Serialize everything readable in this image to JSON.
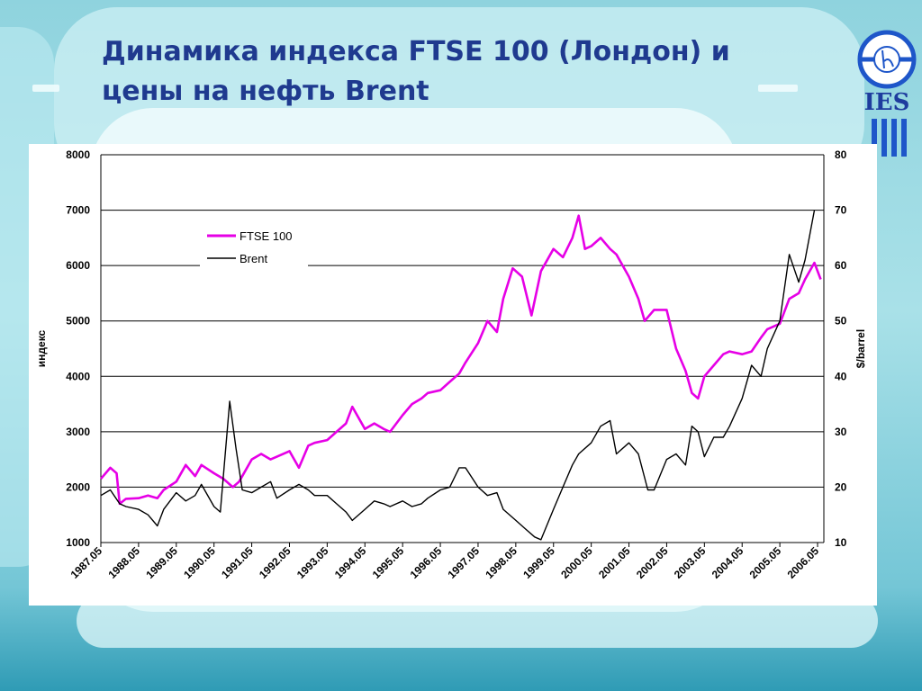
{
  "slide": {
    "title_line1": "Динамика индекса FTSE 100 (Лондон) и",
    "title_line2": "цены на нефть Brent",
    "logo_text": "IES"
  },
  "colors": {
    "ftse": "#e600e6",
    "brent": "#000000",
    "title": "#1f3a8f",
    "logo": "#1e56c9"
  },
  "chart_data": {
    "type": "line",
    "title": "",
    "ylabel_left": "индекс",
    "ylabel_right": "$/barrel",
    "ylim_left": [
      1000,
      8000
    ],
    "ylim_right": [
      10,
      80
    ],
    "yticks_left": [
      "1000",
      "2000",
      "3000",
      "4000",
      "5000",
      "6000",
      "7000",
      "8000"
    ],
    "yticks_right": [
      "10",
      "20",
      "30",
      "40",
      "50",
      "60",
      "70",
      "80"
    ],
    "xticks": [
      "1987.05",
      "1988.05",
      "1989.05",
      "1990.05",
      "1991.05",
      "1992.05",
      "1993.05",
      "1994.05",
      "1995.05",
      "1996.05",
      "1997.05",
      "1998.05",
      "1999.05",
      "2000.05",
      "2001.05",
      "2002.05",
      "2003.05",
      "2004.05",
      "2005.05",
      "2006.05"
    ],
    "grid": true,
    "legend_position": "top-left",
    "series": [
      {
        "name": "FTSE 100",
        "axis": "left",
        "points": [
          [
            "1987.05",
            2150
          ],
          [
            "1987.08",
            2350
          ],
          [
            "1987.10",
            2250
          ],
          [
            "1987.11",
            1700
          ],
          [
            "1988.01",
            1790
          ],
          [
            "1988.05",
            1800
          ],
          [
            "1988.08",
            1850
          ],
          [
            "1988.11",
            1800
          ],
          [
            "1989.01",
            1950
          ],
          [
            "1989.05",
            2100
          ],
          [
            "1989.08",
            2400
          ],
          [
            "1989.11",
            2200
          ],
          [
            "1990.01",
            2400
          ],
          [
            "1990.05",
            2250
          ],
          [
            "1990.08",
            2150
          ],
          [
            "1990.11",
            2000
          ],
          [
            "1991.01",
            2100
          ],
          [
            "1991.05",
            2500
          ],
          [
            "1991.08",
            2600
          ],
          [
            "1991.11",
            2500
          ],
          [
            "1992.01",
            2550
          ],
          [
            "1992.05",
            2650
          ],
          [
            "1992.08",
            2350
          ],
          [
            "1992.11",
            2750
          ],
          [
            "1993.01",
            2800
          ],
          [
            "1993.05",
            2850
          ],
          [
            "1993.08",
            3000
          ],
          [
            "1993.11",
            3150
          ],
          [
            "1994.01",
            3450
          ],
          [
            "1994.05",
            3050
          ],
          [
            "1994.08",
            3150
          ],
          [
            "1994.11",
            3050
          ],
          [
            "1995.01",
            3000
          ],
          [
            "1995.05",
            3300
          ],
          [
            "1995.08",
            3500
          ],
          [
            "1995.11",
            3600
          ],
          [
            "1996.01",
            3700
          ],
          [
            "1996.05",
            3750
          ],
          [
            "1996.08",
            3900
          ],
          [
            "1996.11",
            4050
          ],
          [
            "1997.01",
            4250
          ],
          [
            "1997.05",
            4600
          ],
          [
            "1997.08",
            5000
          ],
          [
            "1997.11",
            4800
          ],
          [
            "1998.01",
            5400
          ],
          [
            "1998.04",
            5950
          ],
          [
            "1998.07",
            5800
          ],
          [
            "1998.10",
            5100
          ],
          [
            "1999.01",
            5900
          ],
          [
            "1999.05",
            6300
          ],
          [
            "1999.08",
            6150
          ],
          [
            "1999.11",
            6500
          ],
          [
            "2000.01",
            6900
          ],
          [
            "2000.03",
            6300
          ],
          [
            "2000.05",
            6350
          ],
          [
            "2000.08",
            6500
          ],
          [
            "2000.11",
            6300
          ],
          [
            "2001.01",
            6200
          ],
          [
            "2001.05",
            5800
          ],
          [
            "2001.08",
            5400
          ],
          [
            "2001.10",
            5000
          ],
          [
            "2002.01",
            5200
          ],
          [
            "2002.05",
            5200
          ],
          [
            "2002.08",
            4500
          ],
          [
            "2002.11",
            4100
          ],
          [
            "2003.01",
            3700
          ],
          [
            "2003.03",
            3600
          ],
          [
            "2003.05",
            4000
          ],
          [
            "2003.08",
            4200
          ],
          [
            "2003.11",
            4400
          ],
          [
            "2004.01",
            4450
          ],
          [
            "2004.05",
            4400
          ],
          [
            "2004.08",
            4450
          ],
          [
            "2004.11",
            4700
          ],
          [
            "2005.01",
            4850
          ],
          [
            "2005.05",
            4950
          ],
          [
            "2005.08",
            5400
          ],
          [
            "2005.11",
            5500
          ],
          [
            "2006.01",
            5750
          ],
          [
            "2006.04",
            6050
          ],
          [
            "2006.06",
            5750
          ]
        ]
      },
      {
        "name": "Brent",
        "axis": "right",
        "points": [
          [
            "1987.05",
            18.5
          ],
          [
            "1987.08",
            19.5
          ],
          [
            "1987.11",
            17
          ],
          [
            "1988.01",
            16.5
          ],
          [
            "1988.05",
            16
          ],
          [
            "1988.08",
            15
          ],
          [
            "1988.11",
            13
          ],
          [
            "1989.01",
            16
          ],
          [
            "1989.05",
            19
          ],
          [
            "1989.08",
            17.5
          ],
          [
            "1989.11",
            18.5
          ],
          [
            "1990.01",
            20.5
          ],
          [
            "1990.05",
            16.5
          ],
          [
            "1990.07",
            15.5
          ],
          [
            "1990.10",
            35.5
          ],
          [
            "1990.12",
            27
          ],
          [
            "1991.02",
            19.5
          ],
          [
            "1991.05",
            19
          ],
          [
            "1991.08",
            20
          ],
          [
            "1991.11",
            21
          ],
          [
            "1992.01",
            18
          ],
          [
            "1992.05",
            19.5
          ],
          [
            "1992.08",
            20.5
          ],
          [
            "1992.11",
            19.5
          ],
          [
            "1993.01",
            18.5
          ],
          [
            "1993.05",
            18.5
          ],
          [
            "1993.08",
            17
          ],
          [
            "1993.11",
            15.5
          ],
          [
            "1994.01",
            14
          ],
          [
            "1994.05",
            16
          ],
          [
            "1994.08",
            17.5
          ],
          [
            "1994.11",
            17
          ],
          [
            "1995.01",
            16.5
          ],
          [
            "1995.05",
            17.5
          ],
          [
            "1995.08",
            16.5
          ],
          [
            "1995.11",
            17
          ],
          [
            "1996.01",
            18
          ],
          [
            "1996.05",
            19.5
          ],
          [
            "1996.08",
            20
          ],
          [
            "1996.11",
            23.5
          ],
          [
            "1997.01",
            23.5
          ],
          [
            "1997.05",
            20
          ],
          [
            "1997.08",
            18.5
          ],
          [
            "1997.11",
            19
          ],
          [
            "1998.01",
            16
          ],
          [
            "1998.05",
            14
          ],
          [
            "1998.08",
            12.5
          ],
          [
            "1998.11",
            11
          ],
          [
            "1999.01",
            10.5
          ],
          [
            "1999.05",
            16
          ],
          [
            "1999.08",
            20
          ],
          [
            "1999.11",
            24
          ],
          [
            "2000.01",
            26
          ],
          [
            "2000.05",
            28
          ],
          [
            "2000.08",
            31
          ],
          [
            "2000.11",
            32
          ],
          [
            "2001.01",
            26
          ],
          [
            "2001.05",
            28
          ],
          [
            "2001.08",
            26
          ],
          [
            "2001.11",
            19.5
          ],
          [
            "2002.01",
            19.5
          ],
          [
            "2002.05",
            25
          ],
          [
            "2002.08",
            26
          ],
          [
            "2002.11",
            24
          ],
          [
            "2003.01",
            31
          ],
          [
            "2003.03",
            30
          ],
          [
            "2003.05",
            25.5
          ],
          [
            "2003.08",
            29
          ],
          [
            "2003.11",
            29
          ],
          [
            "2004.01",
            31
          ],
          [
            "2004.05",
            36
          ],
          [
            "2004.08",
            42
          ],
          [
            "2004.11",
            40
          ],
          [
            "2005.01",
            45
          ],
          [
            "2005.05",
            50
          ],
          [
            "2005.08",
            62
          ],
          [
            "2005.11",
            57
          ],
          [
            "2006.01",
            61
          ],
          [
            "2006.04",
            70
          ]
        ]
      }
    ]
  }
}
